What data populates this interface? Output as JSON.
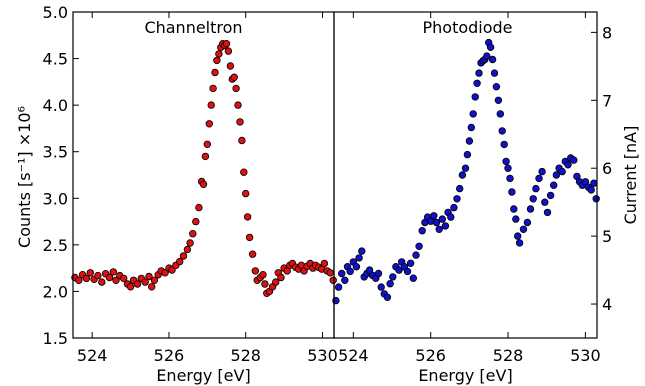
{
  "chart_data": [
    {
      "type": "scatter",
      "title": "Channeltron",
      "xlabel": "Energy [eV]",
      "ylabel": "Counts [s⁻¹]",
      "yscale_note": "×10⁶",
      "xlim": [
        523.5,
        530.3
      ],
      "ylim": [
        1.5,
        5.0
      ],
      "xticks": [
        524,
        526,
        528,
        530
      ],
      "yticks": [
        1.5,
        2.0,
        2.5,
        3.0,
        3.5,
        4.0,
        4.5,
        5.0
      ],
      "ytick_labels": [
        "1.5",
        "2.0",
        "2.5",
        "3.0",
        "3.5",
        "4.0",
        "4.5",
        "5.0"
      ],
      "series": [
        {
          "color": "#dd1111",
          "points": [
            [
              523.55,
              2.15
            ],
            [
              523.65,
              2.12
            ],
            [
              523.75,
              2.18
            ],
            [
              523.85,
              2.14
            ],
            [
              523.95,
              2.2
            ],
            [
              524.05,
              2.13
            ],
            [
              524.15,
              2.17
            ],
            [
              524.25,
              2.1
            ],
            [
              524.35,
              2.19
            ],
            [
              524.45,
              2.15
            ],
            [
              524.55,
              2.21
            ],
            [
              524.62,
              2.12
            ],
            [
              524.72,
              2.17
            ],
            [
              524.82,
              2.14
            ],
            [
              524.92,
              2.08
            ],
            [
              525.0,
              2.05
            ],
            [
              525.08,
              2.12
            ],
            [
              525.18,
              2.08
            ],
            [
              525.28,
              2.14
            ],
            [
              525.38,
              2.1
            ],
            [
              525.48,
              2.16
            ],
            [
              525.55,
              2.05
            ],
            [
              525.62,
              2.12
            ],
            [
              525.72,
              2.18
            ],
            [
              525.8,
              2.22
            ],
            [
              525.9,
              2.2
            ],
            [
              526.0,
              2.25
            ],
            [
              526.08,
              2.23
            ],
            [
              526.18,
              2.28
            ],
            [
              526.28,
              2.32
            ],
            [
              526.38,
              2.38
            ],
            [
              526.48,
              2.45
            ],
            [
              526.55,
              2.52
            ],
            [
              526.62,
              2.62
            ],
            [
              526.7,
              2.75
            ],
            [
              526.78,
              2.9
            ],
            [
              526.85,
              3.18
            ],
            [
              526.9,
              3.15
            ],
            [
              526.95,
              3.45
            ],
            [
              527.0,
              3.58
            ],
            [
              527.05,
              3.8
            ],
            [
              527.1,
              4.0
            ],
            [
              527.15,
              4.18
            ],
            [
              527.2,
              4.35
            ],
            [
              527.25,
              4.48
            ],
            [
              527.3,
              4.55
            ],
            [
              527.35,
              4.62
            ],
            [
              527.4,
              4.66
            ],
            [
              527.45,
              4.64
            ],
            [
              527.5,
              4.66
            ],
            [
              527.55,
              4.58
            ],
            [
              527.6,
              4.42
            ],
            [
              527.65,
              4.28
            ],
            [
              527.7,
              4.3
            ],
            [
              527.75,
              4.18
            ],
            [
              527.8,
              4.0
            ],
            [
              527.85,
              3.82
            ],
            [
              527.9,
              3.62
            ],
            [
              527.95,
              3.28
            ],
            [
              528.0,
              3.05
            ],
            [
              528.05,
              2.8
            ],
            [
              528.1,
              2.58
            ],
            [
              528.18,
              2.4
            ],
            [
              528.25,
              2.22
            ],
            [
              528.3,
              2.12
            ],
            [
              528.38,
              2.15
            ],
            [
              528.45,
              2.18
            ],
            [
              528.5,
              2.08
            ],
            [
              528.55,
              1.98
            ],
            [
              528.62,
              2.0
            ],
            [
              528.7,
              2.05
            ],
            [
              528.78,
              2.1
            ],
            [
              528.85,
              2.2
            ],
            [
              528.92,
              2.15
            ],
            [
              529.0,
              2.25
            ],
            [
              529.08,
              2.22
            ],
            [
              529.15,
              2.28
            ],
            [
              529.22,
              2.3
            ],
            [
              529.3,
              2.26
            ],
            [
              529.38,
              2.24
            ],
            [
              529.45,
              2.28
            ],
            [
              529.52,
              2.22
            ],
            [
              529.6,
              2.27
            ],
            [
              529.68,
              2.3
            ],
            [
              529.75,
              2.25
            ],
            [
              529.82,
              2.28
            ],
            [
              529.9,
              2.26
            ],
            [
              529.98,
              2.24
            ],
            [
              530.05,
              2.3
            ],
            [
              530.12,
              2.22
            ],
            [
              530.2,
              2.2
            ],
            [
              530.28,
              2.12
            ]
          ]
        }
      ]
    },
    {
      "type": "scatter",
      "title": "Photodiode",
      "xlabel": "Energy [eV]",
      "ylabel": "Current [nA]",
      "xlim": [
        523.5,
        530.3
      ],
      "ylim": [
        3.5,
        8.3
      ],
      "xticks": [
        524,
        526,
        528,
        530
      ],
      "yticks": [
        4,
        5,
        6,
        7,
        8
      ],
      "ytick_labels": [
        "4",
        "5",
        "6",
        "7",
        "8"
      ],
      "series": [
        {
          "color": "#1111cc",
          "points": [
            [
              523.55,
              4.05
            ],
            [
              523.62,
              4.25
            ],
            [
              523.7,
              4.45
            ],
            [
              523.78,
              4.35
            ],
            [
              523.85,
              4.55
            ],
            [
              523.92,
              4.48
            ],
            [
              524.0,
              4.62
            ],
            [
              524.08,
              4.55
            ],
            [
              524.15,
              4.68
            ],
            [
              524.22,
              4.78
            ],
            [
              524.28,
              4.4
            ],
            [
              524.35,
              4.45
            ],
            [
              524.42,
              4.5
            ],
            [
              524.5,
              4.42
            ],
            [
              524.58,
              4.38
            ],
            [
              524.65,
              4.45
            ],
            [
              524.72,
              4.25
            ],
            [
              524.8,
              4.15
            ],
            [
              524.88,
              4.1
            ],
            [
              524.95,
              4.3
            ],
            [
              525.02,
              4.4
            ],
            [
              525.1,
              4.55
            ],
            [
              525.18,
              4.5
            ],
            [
              525.25,
              4.62
            ],
            [
              525.32,
              4.55
            ],
            [
              525.4,
              4.48
            ],
            [
              525.48,
              4.6
            ],
            [
              525.55,
              4.38
            ],
            [
              525.62,
              4.72
            ],
            [
              525.7,
              4.85
            ],
            [
              525.78,
              5.08
            ],
            [
              525.85,
              5.2
            ],
            [
              525.92,
              5.28
            ],
            [
              526.0,
              5.22
            ],
            [
              526.08,
              5.3
            ],
            [
              526.15,
              5.2
            ],
            [
              526.22,
              5.1
            ],
            [
              526.3,
              5.25
            ],
            [
              526.38,
              5.15
            ],
            [
              526.45,
              5.35
            ],
            [
              526.52,
              5.28
            ],
            [
              526.6,
              5.42
            ],
            [
              526.68,
              5.55
            ],
            [
              526.75,
              5.7
            ],
            [
              526.82,
              5.9
            ],
            [
              526.9,
              6.0
            ],
            [
              526.95,
              6.2
            ],
            [
              527.0,
              6.4
            ],
            [
              527.05,
              6.6
            ],
            [
              527.1,
              6.8
            ],
            [
              527.15,
              7.05
            ],
            [
              527.2,
              7.25
            ],
            [
              527.25,
              7.4
            ],
            [
              527.3,
              7.55
            ],
            [
              527.35,
              7.58
            ],
            [
              527.4,
              7.6
            ],
            [
              527.45,
              7.65
            ],
            [
              527.5,
              7.85
            ],
            [
              527.55,
              7.78
            ],
            [
              527.6,
              7.6
            ],
            [
              527.65,
              7.4
            ],
            [
              527.7,
              7.2
            ],
            [
              527.75,
              7.0
            ],
            [
              527.8,
              6.8
            ],
            [
              527.85,
              6.55
            ],
            [
              527.9,
              6.35
            ],
            [
              527.95,
              6.1
            ],
            [
              528.0,
              6.0
            ],
            [
              528.05,
              5.85
            ],
            [
              528.1,
              5.65
            ],
            [
              528.15,
              5.4
            ],
            [
              528.2,
              5.25
            ],
            [
              528.25,
              5.0
            ],
            [
              528.3,
              4.9
            ],
            [
              528.4,
              5.1
            ],
            [
              528.5,
              5.2
            ],
            [
              528.58,
              5.4
            ],
            [
              528.65,
              5.55
            ],
            [
              528.72,
              5.7
            ],
            [
              528.8,
              5.85
            ],
            [
              528.88,
              5.95
            ],
            [
              528.95,
              5.5
            ],
            [
              529.02,
              5.35
            ],
            [
              529.1,
              5.6
            ],
            [
              529.18,
              5.75
            ],
            [
              529.25,
              5.9
            ],
            [
              529.32,
              6.0
            ],
            [
              529.4,
              5.95
            ],
            [
              529.48,
              6.1
            ],
            [
              529.55,
              6.05
            ],
            [
              529.62,
              6.15
            ],
            [
              529.7,
              6.12
            ],
            [
              529.78,
              5.88
            ],
            [
              529.85,
              5.8
            ],
            [
              529.92,
              5.75
            ],
            [
              530.0,
              5.8
            ],
            [
              530.08,
              5.72
            ],
            [
              530.15,
              5.68
            ],
            [
              530.22,
              5.78
            ],
            [
              530.28,
              5.55
            ]
          ]
        }
      ]
    }
  ]
}
